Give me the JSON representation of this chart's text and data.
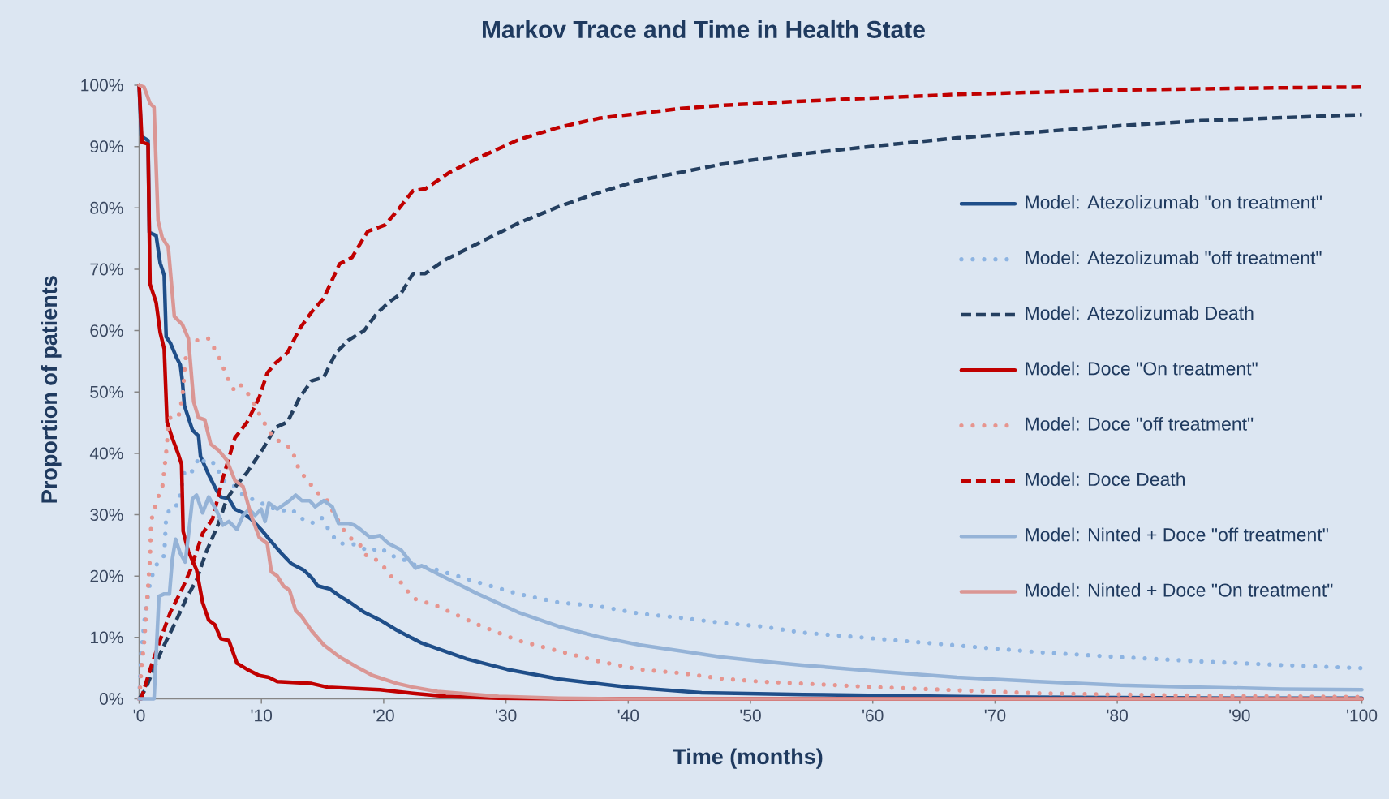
{
  "chart_data": {
    "type": "line",
    "title": "Markov Trace and Time in Health State",
    "xlabel": "Time (months)",
    "ylabel": "Proportion of patients",
    "xlim": [
      0,
      100
    ],
    "ylim": [
      0,
      100
    ],
    "xticks": [
      {
        "value": 0,
        "label": "'0"
      },
      {
        "value": 10,
        "label": "'10"
      },
      {
        "value": 20,
        "label": "'20"
      },
      {
        "value": 30,
        "label": "'30"
      },
      {
        "value": 40,
        "label": "'40"
      },
      {
        "value": 50,
        "label": "'50"
      },
      {
        "value": 60,
        "label": "'60"
      },
      {
        "value": 70,
        "label": "'70"
      },
      {
        "value": 80,
        "label": "'80"
      },
      {
        "value": 90,
        "label": "'90"
      },
      {
        "value": 100,
        "label": "'100"
      }
    ],
    "yticks": [
      {
        "value": 0,
        "label": "0%"
      },
      {
        "value": 10,
        "label": "10%"
      },
      {
        "value": 20,
        "label": "20%"
      },
      {
        "value": 30,
        "label": "30%"
      },
      {
        "value": 40,
        "label": "40%"
      },
      {
        "value": 50,
        "label": "50%"
      },
      {
        "value": 60,
        "label": "60%"
      },
      {
        "value": 70,
        "label": "70%"
      },
      {
        "value": 80,
        "label": "80%"
      },
      {
        "value": 90,
        "label": "90%"
      },
      {
        "value": 100,
        "label": "100%"
      }
    ],
    "legend": "right",
    "series": [
      {
        "name": "Model: Atezolizumab \"on treatment\"",
        "color": "#1F4E89",
        "line_style": "solid",
        "x": [
          0,
          0.17,
          0.73,
          0.83,
          1.39,
          1.72,
          2.05,
          2.21,
          2.55,
          3.04,
          3.37,
          3.54,
          3.7,
          4.03,
          4.36,
          4.86,
          5.02,
          5.69,
          6.35,
          6.68,
          7.34,
          7.83,
          8.5,
          9.16,
          9.98,
          10.81,
          11.64,
          12.46,
          13.45,
          14.12,
          14.61,
          15.6,
          16.43,
          17.26,
          18.41,
          19.74,
          21.06,
          23.1,
          26.8,
          30.1,
          34.4,
          40,
          46,
          54.3,
          62,
          70,
          80,
          90,
          100
        ],
        "values": [
          100,
          91.7,
          91,
          76,
          75.5,
          71,
          69,
          59,
          58,
          55.7,
          54.4,
          51.7,
          47.8,
          45.8,
          43.8,
          42.8,
          39.5,
          36.5,
          33.9,
          32.9,
          32.6,
          30.9,
          30.3,
          29.3,
          27.6,
          25.6,
          23.7,
          22,
          21,
          19.7,
          18.4,
          17.9,
          16.7,
          15.7,
          14.1,
          12.8,
          11.2,
          9.1,
          6.5,
          4.8,
          3.2,
          1.9,
          1.0,
          0.7,
          0.5,
          0.3,
          0.2,
          0.1,
          0.1
        ]
      },
      {
        "name": "Model: Atezolizumab \"off treatment\"",
        "color": "#8DB4E2",
        "line_style": "dotted",
        "x": [
          0,
          0.17,
          0.5,
          0.9,
          1.22,
          1.72,
          2.05,
          2.2,
          2.55,
          3.2,
          3.7,
          4.2,
          4.5,
          5.0,
          5.5,
          6.18,
          6.84,
          7.5,
          8.5,
          9.98,
          11.5,
          12.5,
          13.1,
          14.1,
          14.9,
          15.8,
          16.4,
          17.4,
          18.1,
          18.9,
          19.7,
          20.6,
          21.4,
          22.2,
          24.4,
          27.7,
          31,
          34.3,
          37.6,
          40.9,
          44.3,
          47.6,
          50.9,
          54.2,
          60.3,
          66.9,
          73.6,
          80.2,
          86.8,
          93.5,
          100
        ],
        "values": [
          0,
          7.5,
          14,
          19,
          21,
          23,
          23.3,
          29.3,
          31.3,
          31.6,
          36.9,
          36.5,
          37.9,
          39.5,
          38.2,
          38.5,
          35.6,
          35.2,
          33.2,
          31.9,
          30.6,
          30.9,
          29.6,
          28.6,
          29.6,
          26.6,
          25.3,
          25.3,
          24.7,
          24,
          24.7,
          23.3,
          23,
          22,
          21,
          19,
          17.1,
          15.7,
          15.1,
          13.9,
          13.2,
          12.4,
          11.8,
          10.8,
          9.8,
          8.7,
          7.6,
          6.8,
          6.1,
          5.5,
          5.0
        ]
      },
      {
        "name": "Model: Atezolizumab Death",
        "color": "#243F60",
        "line_style": "dashed",
        "x": [
          0,
          0.5,
          1.06,
          1.88,
          2.88,
          3.87,
          4.7,
          5.5,
          6.5,
          7.17,
          8.0,
          8.83,
          10.15,
          11.14,
          12.13,
          13.12,
          14.1,
          15.1,
          16.1,
          17.1,
          18.4,
          19.4,
          20.4,
          21.4,
          22.4,
          23.4,
          25.1,
          27.7,
          31,
          34.3,
          37.6,
          40.9,
          44.3,
          47.6,
          50.9,
          54.2,
          60.3,
          66.9,
          73.6,
          80.2,
          86.8,
          93.5,
          100
        ],
        "values": [
          0,
          1.5,
          4.2,
          8.1,
          12.1,
          16.4,
          19.4,
          24,
          28.6,
          32.6,
          34.9,
          36.9,
          40.8,
          44.2,
          45.1,
          49.1,
          51.8,
          52.4,
          56.4,
          58.4,
          60,
          62.7,
          64.6,
          66,
          69.3,
          69.3,
          71.6,
          74.2,
          77.5,
          80.2,
          82.5,
          84.5,
          85.8,
          87.1,
          88,
          88.8,
          90.1,
          91.4,
          92.4,
          93.4,
          94.2,
          94.7,
          95.2
        ]
      },
      {
        "name": "Model: Doce \"On treatment\"",
        "color": "#C00000",
        "line_style": "solid",
        "x": [
          0,
          0.23,
          0.73,
          0.89,
          1.39,
          1.72,
          2.05,
          2.28,
          2.71,
          3.2,
          3.47,
          3.6,
          4.03,
          4.7,
          5.19,
          5.69,
          6.18,
          6.68,
          7.34,
          8.0,
          8.83,
          9.82,
          10.6,
          11.3,
          14.1,
          15.4,
          19.7,
          22.4,
          25.1,
          29.4,
          35,
          100
        ],
        "values": [
          100,
          90.7,
          90.4,
          67.6,
          64.6,
          59.7,
          57,
          45.1,
          42.5,
          39.9,
          38.2,
          27.3,
          24,
          21,
          15.7,
          12.8,
          12.1,
          9.8,
          9.5,
          5.8,
          4.8,
          3.8,
          3.5,
          2.8,
          2.5,
          1.9,
          1.5,
          0.9,
          0.4,
          0.1,
          0,
          0
        ]
      },
      {
        "name": "Model: Doce \"off treatment\"",
        "color": "#E6958F",
        "line_style": "dotted",
        "x": [
          0,
          0.23,
          0.4,
          0.65,
          0.9,
          0.96,
          1.06,
          1.55,
          1.88,
          2.2,
          2.38,
          2.55,
          3.2,
          3.54,
          3.7,
          3.87,
          4.36,
          5.0,
          5.69,
          6.18,
          6.68,
          7.0,
          7.34,
          7.83,
          8.33,
          9.16,
          9.98,
          10.48,
          10.98,
          11.64,
          12.46,
          12.8,
          13.1,
          13.8,
          14.3,
          14.8,
          15.4,
          15.9,
          16.8,
          17.4,
          18.1,
          18.6,
          19.2,
          20.1,
          20.6,
          21.4,
          22.4,
          24.4,
          27.7,
          31,
          34.3,
          37.6,
          40.9,
          44.3,
          47.6,
          50.9,
          54.2,
          60.3,
          66.9,
          73.6,
          80.2,
          86.8,
          100
        ],
        "values": [
          0,
          5.8,
          8.8,
          16,
          23.3,
          27.6,
          29.6,
          32.9,
          34.2,
          39.9,
          44.2,
          45.8,
          45.8,
          49.1,
          53.1,
          56.7,
          58,
          58.7,
          58.7,
          57,
          55,
          53.4,
          51.8,
          50.1,
          51.1,
          49.1,
          45.8,
          44.2,
          42.5,
          41.8,
          40.8,
          38.9,
          37.2,
          35.6,
          34.2,
          33.2,
          32.3,
          30.3,
          27.3,
          26,
          25,
          23.3,
          23,
          21.3,
          20,
          19,
          16.4,
          15.1,
          12.1,
          9.5,
          7.8,
          6.1,
          4.8,
          4.2,
          3.3,
          2.8,
          2.5,
          1.9,
          1.4,
          0.9,
          0.7,
          0.5,
          0.3
        ]
      },
      {
        "name": "Model: Doce Death",
        "color": "#C00000",
        "line_style": "dashed",
        "x": [
          0,
          0.17,
          0.9,
          1.7,
          2.55,
          3.54,
          4.2,
          5.2,
          6.0,
          6.84,
          7.83,
          8.83,
          9.82,
          10.48,
          11.14,
          12.13,
          13.12,
          14.1,
          15.1,
          16.4,
          17.4,
          18.7,
          20.1,
          21.1,
          22.4,
          23.4,
          25.4,
          27.7,
          31,
          34.3,
          37.6,
          40.9,
          44.3,
          47.6,
          54.2,
          66.9,
          80.2,
          90.1,
          100
        ],
        "values": [
          0,
          0,
          4.8,
          9.5,
          14.1,
          18,
          21,
          27,
          29.3,
          35.9,
          42.5,
          45.1,
          49.1,
          53.1,
          54.7,
          56.4,
          60.3,
          63,
          65.3,
          70.9,
          71.9,
          76.2,
          77.2,
          79.5,
          82.8,
          83.1,
          85.8,
          88.1,
          91.1,
          93.1,
          94.6,
          95.4,
          96.2,
          96.7,
          97.4,
          98.5,
          99.2,
          99.5,
          99.7
        ]
      },
      {
        "name": "Model: Ninted + Doce \"off treatment\"",
        "color": "#95B3D7",
        "line_style": "solid",
        "x": [
          0,
          1.22,
          1.4,
          1.62,
          2.05,
          2.48,
          2.71,
          2.98,
          3.37,
          3.77,
          4.03,
          4.36,
          4.69,
          5.19,
          5.69,
          6.35,
          6.84,
          7.34,
          8.0,
          8.5,
          8.99,
          9.49,
          9.98,
          10.3,
          10.6,
          11.3,
          11.8,
          12.3,
          12.8,
          13.3,
          13.95,
          14.4,
          15.1,
          15.8,
          16.3,
          17.1,
          17.6,
          18.1,
          18.9,
          19.7,
          20.4,
          21.4,
          21.8,
          22.6,
          23.1,
          24.4,
          27.7,
          31,
          34.3,
          37.6,
          40.9,
          44.3,
          47.6,
          50.9,
          54.2,
          60.3,
          66.9,
          73.6,
          80.2,
          86.8,
          93.5,
          100
        ],
        "values": [
          0,
          0,
          7.5,
          16.7,
          17.1,
          17.1,
          22.7,
          26,
          23.7,
          22.3,
          26.6,
          32.6,
          33.2,
          30.3,
          32.9,
          30.6,
          28.3,
          28.9,
          27.6,
          29.9,
          30.9,
          29.9,
          30.9,
          28.9,
          31.9,
          30.9,
          31.6,
          32.3,
          33.2,
          32.3,
          32.3,
          31.3,
          32.3,
          31.3,
          28.6,
          28.6,
          28.3,
          27.6,
          26.3,
          26.6,
          25.3,
          24.3,
          23.3,
          21.3,
          21.7,
          20.4,
          17.1,
          14.1,
          11.8,
          10.1,
          8.8,
          7.8,
          6.8,
          6.1,
          5.5,
          4.5,
          3.5,
          2.8,
          2.2,
          1.9,
          1.6,
          1.5
        ]
      },
      {
        "name": "Model: Ninted + Doce \"On treatment\"",
        "color": "#DA9694",
        "line_style": "solid",
        "x": [
          0,
          0.4,
          0.9,
          1.22,
          1.55,
          1.88,
          2.38,
          2.88,
          3.54,
          4.03,
          4.46,
          4.86,
          5.36,
          5.85,
          6.5,
          7.17,
          7.83,
          8.5,
          9.16,
          9.82,
          10.48,
          10.81,
          11.3,
          11.8,
          12.3,
          12.8,
          13.3,
          14.1,
          15.1,
          16.4,
          17.8,
          19.1,
          21.1,
          22.4,
          24.4,
          29.4,
          34.3,
          40,
          100
        ],
        "values": [
          100,
          99.7,
          97,
          96.4,
          77.9,
          75.2,
          73.6,
          62.3,
          61,
          58.7,
          48.4,
          45.8,
          45.5,
          41.5,
          40.5,
          38.9,
          35.6,
          34.6,
          29.9,
          26.3,
          25.3,
          20.7,
          20,
          18.4,
          17.7,
          14.4,
          13.4,
          11.1,
          8.8,
          6.8,
          5.2,
          3.8,
          2.5,
          1.9,
          1.2,
          0.4,
          0.1,
          0,
          0
        ]
      }
    ]
  }
}
